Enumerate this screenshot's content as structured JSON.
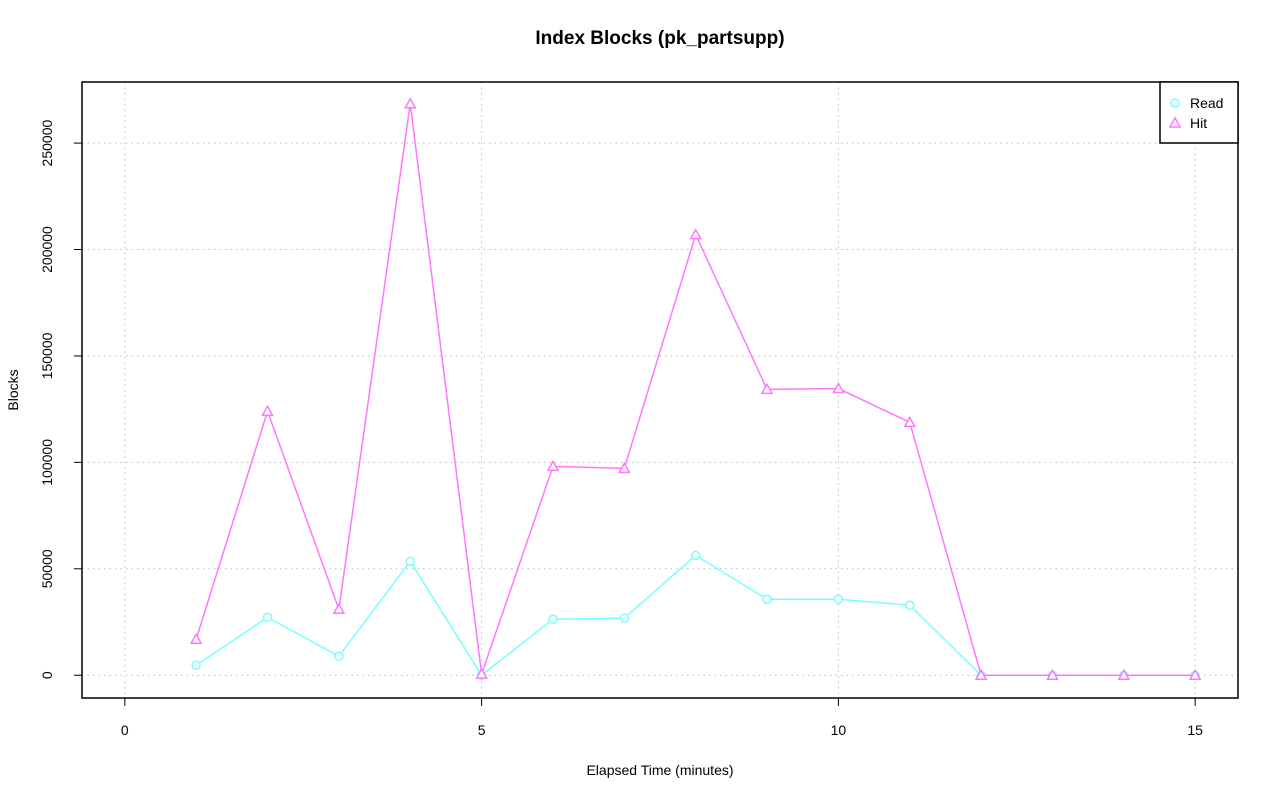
{
  "chart_data": {
    "type": "line",
    "title": "Index Blocks (pk_partsupp)",
    "x_label": "Elapsed Time (minutes)",
    "y_label": "Blocks",
    "x": [
      1,
      2,
      3,
      4,
      5,
      6,
      7,
      8,
      9,
      10,
      11,
      12,
      13,
      14,
      15
    ],
    "series": [
      {
        "name": "Read",
        "color": "#77ffff",
        "marker": "circle",
        "values": [
          4700,
          27200,
          8900,
          53500,
          0,
          26300,
          26800,
          56300,
          35700,
          35700,
          32900,
          0,
          0,
          0,
          0
        ]
      },
      {
        "name": "Hit",
        "color": "#ff77ff",
        "marker": "triangle",
        "values": [
          16900,
          124000,
          31000,
          268500,
          500,
          98100,
          97200,
          207000,
          134300,
          134700,
          118800,
          0,
          0,
          0,
          0
        ]
      }
    ],
    "xlim": [
      -0.6,
      15.6
    ],
    "ylim": [
      -10700,
      278700
    ],
    "xticks": [
      0,
      5,
      10,
      15
    ],
    "yticks": [
      0,
      50000,
      100000,
      150000,
      200000,
      250000
    ],
    "grid": true,
    "legend": "top-right"
  }
}
